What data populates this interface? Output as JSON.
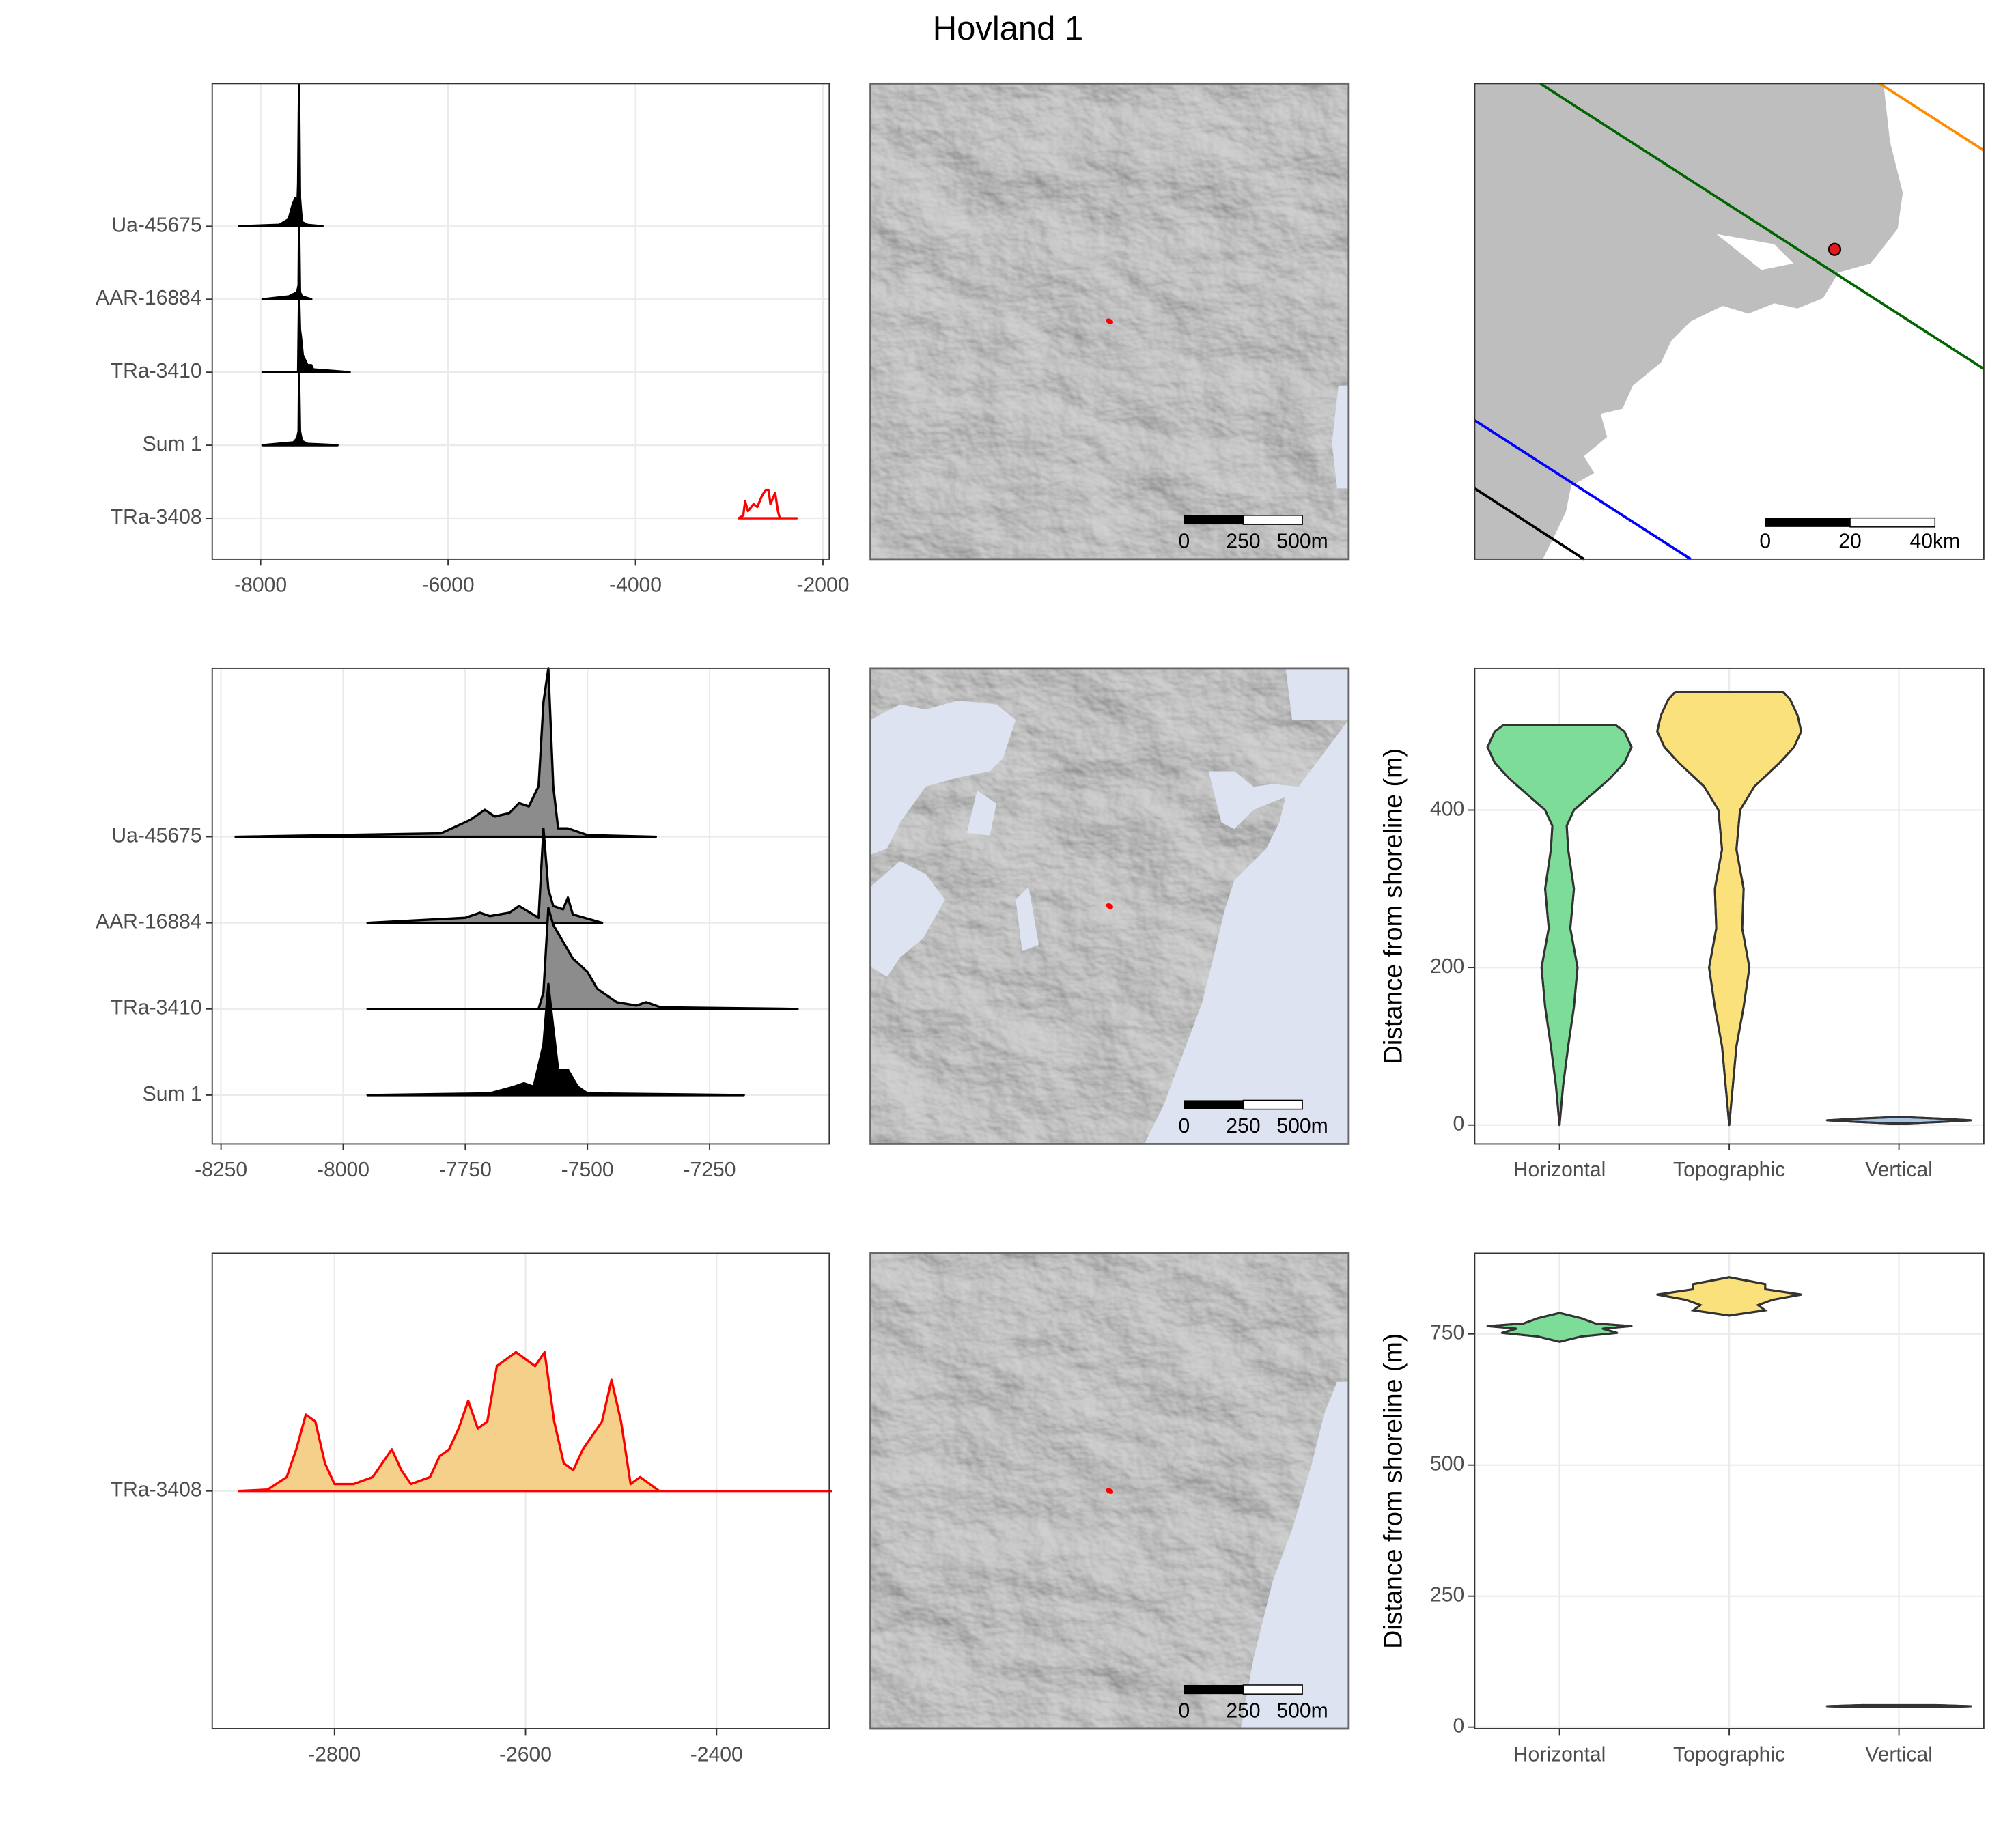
{
  "title": "Hovland 1",
  "chart_data": [
    {
      "type": "ridgeline",
      "categories": [
        "Ua-45675",
        "AAR-16884",
        "TRa-3410",
        "Sum 1",
        "TRa-3408"
      ],
      "series": [
        {
          "color": "#000000",
          "fill": "#000000",
          "x": [
            -8230,
            -7800,
            -7700,
            -7660,
            -7630,
            -7610,
            -7600,
            -7590,
            -7580,
            -7560,
            -7500,
            -7340
          ],
          "values": [
            0,
            0.01,
            0.05,
            0.15,
            0.2,
            0.1,
            0.3,
            1,
            0.2,
            0.03,
            0.01,
            0
          ]
        },
        {
          "color": "#000000",
          "fill": "#000000",
          "x": [
            -7980,
            -7700,
            -7640,
            -7610,
            -7595,
            -7590,
            -7580,
            -7560,
            -7460
          ],
          "values": [
            0,
            0.02,
            0.04,
            0.05,
            0.1,
            0.55,
            0.05,
            0.02,
            0
          ]
        },
        {
          "color": "#000000",
          "fill": "#000000",
          "x": [
            -7980,
            -7600,
            -7590,
            -7580,
            -7570,
            -7550,
            -7500,
            -7460,
            -7440,
            -7050
          ],
          "values": [
            0,
            0,
            0.55,
            0.3,
            0.25,
            0.12,
            0.05,
            0.05,
            0.02,
            0
          ]
        },
        {
          "color": "#000000",
          "fill": "#000000",
          "x": [
            -7980,
            -7650,
            -7610,
            -7595,
            -7590,
            -7580,
            -7560,
            -7500,
            -7180
          ],
          "values": [
            0,
            0.02,
            0.05,
            0.1,
            0.5,
            0.1,
            0.03,
            0.01,
            0
          ]
        },
        {
          "color": "#ff0000",
          "fill": "none",
          "x": [
            -2900,
            -2850,
            -2830,
            -2800,
            -2740,
            -2700,
            -2650,
            -2610,
            -2580,
            -2560,
            -2510,
            -2480,
            -2460,
            -2280
          ],
          "values": [
            0,
            0.02,
            0.12,
            0.05,
            0.1,
            0.08,
            0.16,
            0.2,
            0.2,
            0.1,
            0.18,
            0.05,
            0,
            0
          ]
        }
      ],
      "xlim": [
        -8517,
        -1932
      ],
      "xticks": [
        -8000,
        -6000,
        -4000,
        -2000
      ],
      "grid": true
    },
    {
      "type": "map",
      "scale_labels": [
        "0",
        "250",
        "500m"
      ]
    },
    {
      "type": "overview-map",
      "scale_labels": [
        "0",
        "20",
        "40km"
      ]
    },
    {
      "type": "ridgeline",
      "categories": [
        "Ua-45675",
        "AAR-16884",
        "TRa-3410",
        "Sum 1"
      ],
      "series": [
        {
          "color": "#000000",
          "fill": "#8c8c8c",
          "x": [
            -8220,
            -7800,
            -7740,
            -7710,
            -7690,
            -7660,
            -7640,
            -7620,
            -7600,
            -7590,
            -7580,
            -7570,
            -7560,
            -7540,
            -7500,
            -7360
          ],
          "values": [
            0,
            0.02,
            0.1,
            0.16,
            0.12,
            0.14,
            0.2,
            0.18,
            0.3,
            0.8,
            1,
            0.3,
            0.05,
            0.05,
            0.01,
            0
          ]
        },
        {
          "color": "#000000",
          "fill": "#8c8c8c",
          "x": [
            -7950,
            -7750,
            -7720,
            -7700,
            -7660,
            -7640,
            -7600,
            -7590,
            -7580,
            -7570,
            -7550,
            -7540,
            -7530,
            -7470
          ],
          "values": [
            0,
            0.03,
            0.06,
            0.04,
            0.06,
            0.1,
            0.03,
            0.56,
            0.2,
            0.1,
            0.08,
            0.15,
            0.05,
            0
          ]
        },
        {
          "color": "#000000",
          "fill": "#8c8c8c",
          "x": [
            -7950,
            -7600,
            -7590,
            -7580,
            -7570,
            -7550,
            -7530,
            -7500,
            -7480,
            -7440,
            -7400,
            -7380,
            -7350,
            -7070
          ],
          "values": [
            0,
            0,
            0.1,
            0.6,
            0.5,
            0.4,
            0.3,
            0.22,
            0.12,
            0.04,
            0.02,
            0.04,
            0.01,
            0
          ]
        },
        {
          "color": "#000000",
          "fill": "#000000",
          "x": [
            -7950,
            -7700,
            -7650,
            -7630,
            -7610,
            -7590,
            -7580,
            -7570,
            -7560,
            -7540,
            -7520,
            -7500,
            -7180
          ],
          "values": [
            0,
            0.01,
            0.05,
            0.07,
            0.05,
            0.3,
            0.66,
            0.4,
            0.15,
            0.15,
            0.05,
            0.01,
            0
          ]
        }
      ],
      "xlim": [
        -8268,
        -7005
      ],
      "xticks": [
        -8250,
        -8000,
        -7750,
        -7500,
        -7250
      ],
      "grid": true
    },
    {
      "type": "map",
      "scale_labels": [
        "0",
        "250",
        "500m"
      ]
    },
    {
      "type": "violin",
      "ylabel": "Distance from shoreline (m)",
      "categories": [
        "Horizontal",
        "Topographic",
        "Vertical"
      ],
      "series": [
        {
          "color": "#7ddc98",
          "values": [
            0,
            50,
            100,
            150,
            200,
            250,
            300,
            350,
            380,
            400,
            420,
            440,
            460,
            480,
            500,
            508
          ],
          "width": [
            0,
            0.05,
            0.12,
            0.2,
            0.25,
            0.15,
            0.2,
            0.12,
            0.1,
            0.2,
            0.45,
            0.7,
            0.9,
            1,
            0.9,
            0.78
          ]
        },
        {
          "color": "#fae17b",
          "values": [
            0,
            50,
            100,
            150,
            200,
            250,
            300,
            350,
            400,
            430,
            460,
            480,
            500,
            520,
            540,
            550
          ],
          "width": [
            0,
            0.05,
            0.1,
            0.2,
            0.28,
            0.18,
            0.2,
            0.1,
            0.15,
            0.35,
            0.7,
            0.9,
            1,
            0.95,
            0.85,
            0.75
          ]
        },
        {
          "color": "#a9c4e6",
          "values": [
            2,
            4,
            6,
            8,
            10
          ],
          "width": [
            0.1,
            0.6,
            1,
            0.6,
            0.1
          ]
        }
      ],
      "ylim": [
        -24,
        580
      ],
      "yticks": [
        0,
        200,
        400
      ],
      "grid": true
    },
    {
      "type": "ridgeline",
      "categories": [
        "TRa-3408"
      ],
      "series": [
        {
          "color": "#ff0000",
          "fill": "#f5d08a",
          "x": [
            -2900,
            -2870,
            -2850,
            -2840,
            -2830,
            -2820,
            -2810,
            -2800,
            -2780,
            -2760,
            -2740,
            -2730,
            -2720,
            -2700,
            -2690,
            -2680,
            -2670,
            -2660,
            -2650,
            -2640,
            -2630,
            -2610,
            -2600,
            -2590,
            -2580,
            -2570,
            -2560,
            -2550,
            -2540,
            -2520,
            -2510,
            -2500,
            -2490,
            -2480,
            -2470,
            -2460,
            -2280
          ],
          "values": [
            0,
            0.01,
            0.1,
            0.3,
            0.55,
            0.5,
            0.2,
            0.05,
            0.05,
            0.1,
            0.3,
            0.15,
            0.05,
            0.1,
            0.25,
            0.3,
            0.45,
            0.65,
            0.45,
            0.5,
            0.9,
            1,
            0.95,
            0.9,
            1,
            0.5,
            0.2,
            0.15,
            0.3,
            0.5,
            0.8,
            0.5,
            0.05,
            0.1,
            0.05,
            0,
            0
          ]
        }
      ],
      "xlim": [
        -2928,
        -2282
      ],
      "xticks": [
        -2800,
        -2600,
        -2400
      ],
      "grid": true
    },
    {
      "type": "map",
      "scale_labels": [
        "0",
        "250",
        "500m"
      ]
    },
    {
      "type": "violin",
      "ylabel": "Distance from shoreline (m)",
      "categories": [
        "Horizontal",
        "Topographic",
        "Vertical"
      ],
      "series": [
        {
          "color": "#7ddc98",
          "values": [
            735,
            745,
            752,
            760,
            765,
            770,
            780,
            790
          ],
          "width": [
            0,
            0.3,
            0.8,
            0.6,
            1,
            0.5,
            0.3,
            0
          ]
        },
        {
          "color": "#fae17b",
          "values": [
            785,
            795,
            805,
            815,
            825,
            835,
            845,
            858
          ],
          "width": [
            0,
            0.5,
            0.4,
            0.6,
            1,
            0.5,
            0.5,
            0
          ]
        },
        {
          "color": "#a9c4e6",
          "values": [
            38,
            40,
            42
          ],
          "width": [
            0.5,
            1,
            0.5
          ]
        }
      ],
      "ylim": [
        -3,
        904
      ],
      "yticks": [
        0,
        250,
        500,
        750
      ],
      "grid": true
    }
  ]
}
